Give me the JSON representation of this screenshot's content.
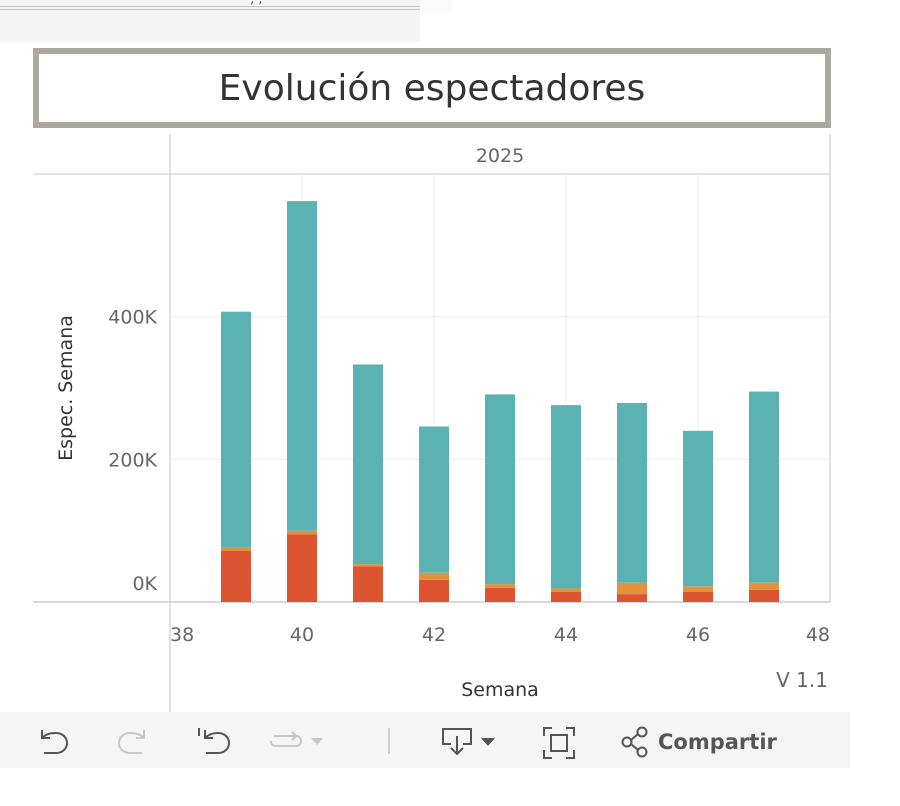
{
  "top_fragment": "‚ ‚",
  "title": "Evolución espectadores",
  "column_header": "2025",
  "version_label": "V 1.1",
  "toolbar": {
    "undo_icon": "undo-icon",
    "redo_icon": "redo-icon",
    "revert_icon": "revert-icon",
    "refresh_icon": "refresh-icon",
    "download_icon": "download-icon",
    "fullscreen_icon": "fullscreen-icon",
    "share_label": "Compartir"
  },
  "colors": {
    "teal": "#5ab3b2",
    "orange": "#e3913a",
    "red": "#dd5431"
  },
  "chart_data": {
    "type": "bar",
    "stacked": true,
    "x": [
      39,
      40,
      41,
      42,
      43,
      44,
      45,
      46,
      47
    ],
    "xlabel": "Semana",
    "ylabel": "Espec. Semana",
    "xlim": [
      38,
      48
    ],
    "ylim": [
      0,
      600000
    ],
    "xticks": [
      "38",
      "40",
      "42",
      "44",
      "46",
      "48"
    ],
    "yticks": [
      "0K",
      "200K",
      "400K"
    ],
    "series": [
      {
        "color": "#dd5431",
        "values": [
          72000,
          95000,
          50000,
          31000,
          20000,
          14000,
          11000,
          14000,
          17000
        ]
      },
      {
        "color": "#e3913a",
        "values": [
          5000,
          5000,
          3000,
          10000,
          5000,
          5000,
          16000,
          8000,
          10000
        ]
      },
      {
        "color": "#5ab3b2",
        "values": [
          330000,
          462000,
          280000,
          205000,
          266000,
          257000,
          252000,
          218000,
          268000
        ]
      }
    ],
    "grid": true,
    "legend": "none"
  }
}
